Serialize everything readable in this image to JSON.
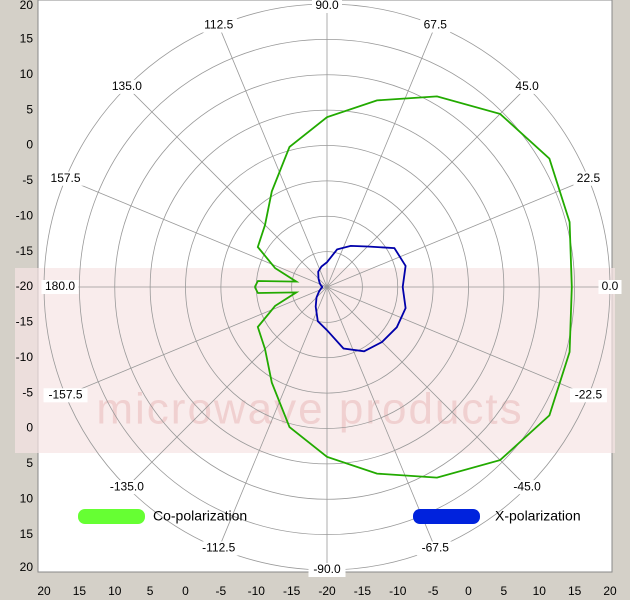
{
  "chart_data": {
    "type": "polar",
    "rlim": [
      -20,
      20
    ],
    "rticks": [
      -20,
      -15,
      -10,
      -5,
      0,
      5,
      10,
      15,
      20
    ],
    "angle_ticks": [
      {
        "value": 0,
        "label": "0.0"
      },
      22.5,
      {
        "value": 45,
        "label": "45.0"
      },
      67.5,
      {
        "value": 90,
        "label": "90.0"
      },
      112.5,
      {
        "value": 135,
        "label": "135.0"
      },
      157.5,
      {
        "value": 180,
        "label": "180.0"
      },
      -157.5,
      {
        "value": -135,
        "label": "-135.0"
      },
      -112.5,
      {
        "value": -90,
        "label": "-90.0"
      },
      -67.5,
      {
        "value": -45,
        "label": "-45.0"
      },
      -22.5
    ],
    "grid": true,
    "watermark": "microwave products",
    "x": [
      -180,
      -175,
      -170,
      -160,
      -150,
      -135,
      -120,
      -105,
      -90,
      -75,
      -60,
      -45,
      -30,
      -15,
      0,
      15,
      30,
      45,
      60,
      75,
      90,
      105,
      120,
      135,
      150,
      160,
      170,
      175,
      180
    ],
    "series": [
      {
        "name": "Co-polarization",
        "color": "#22aa00",
        "legend_color": "#66ff33",
        "values": [
          -9.8,
          -10.2,
          -15.6,
          -12.2,
          -8.7,
          -7.6,
          -4.4,
          0.5,
          4.0,
          7.3,
          11.1,
          14.6,
          16.3,
          15.5,
          14.6,
          15.5,
          16.3,
          14.6,
          11.1,
          7.3,
          4.0,
          0.5,
          -4.4,
          -7.6,
          -8.7,
          -12.2,
          -15.6,
          -10.2,
          -9.8
        ]
      },
      {
        "name": "X-polarization",
        "color": "#0000aa",
        "legend_color": "#0022dd",
        "values": [
          -19.3,
          -19.3,
          -19.2,
          -19,
          -18.7,
          -17.9,
          -16.8,
          -15,
          -13.9,
          -11,
          -9.5,
          -9,
          -8.6,
          -8.5,
          -9.3,
          -8.5,
          -9,
          -11.9,
          -13.3,
          -14.5,
          -16.5,
          -17,
          -17.5,
          -18.3,
          -18.8,
          -19,
          -19.2,
          -19.3,
          -19.3
        ]
      }
    ]
  }
}
